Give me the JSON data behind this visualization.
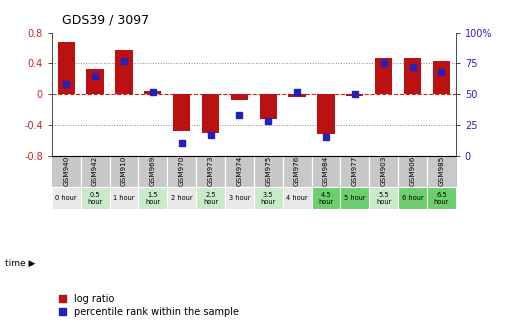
{
  "title": "GDS39 / 3097",
  "samples": [
    "GSM940",
    "GSM942",
    "GSM910",
    "GSM969",
    "GSM970",
    "GSM973",
    "GSM974",
    "GSM975",
    "GSM976",
    "GSM984",
    "GSM977",
    "GSM903",
    "GSM906",
    "GSM985"
  ],
  "time_labels": [
    "0 hour",
    "0.5\nhour",
    "1 hour",
    "1.5\nhour",
    "2 hour",
    "2.5\nhour",
    "3 hour",
    "3.5\nhour",
    "4 hour",
    "4.5\nhour",
    "5 hour",
    "5.5\nhour",
    "6 hour",
    "6.5\nhour"
  ],
  "time_bg_colors": [
    "#e8e8e8",
    "#c8eac8",
    "#e8e8e8",
    "#c8eac8",
    "#e8e8e8",
    "#c8eac8",
    "#e8e8e8",
    "#c8eac8",
    "#e8e8e8",
    "#6dce6d",
    "#6dce6d",
    "#c8eac8",
    "#6dce6d",
    "#6dce6d"
  ],
  "log_ratio": [
    0.68,
    0.33,
    0.57,
    0.04,
    -0.48,
    -0.5,
    -0.08,
    -0.32,
    -0.04,
    -0.52,
    -0.03,
    0.47,
    0.47,
    0.43
  ],
  "percentile": [
    58,
    65,
    77,
    52,
    10,
    17,
    33,
    28,
    52,
    15,
    50,
    75,
    72,
    68
  ],
  "ylim_left": [
    -0.8,
    0.8
  ],
  "ylim_right": [
    0,
    100
  ],
  "bar_color": "#bb1111",
  "dot_color": "#2222bb",
  "zero_line_color": "#cc2222",
  "label_color_left": "#cc2222",
  "label_color_right": "#2222bb",
  "header_bg": "#c8c8c8",
  "figsize": [
    5.18,
    3.27
  ],
  "dpi": 100
}
